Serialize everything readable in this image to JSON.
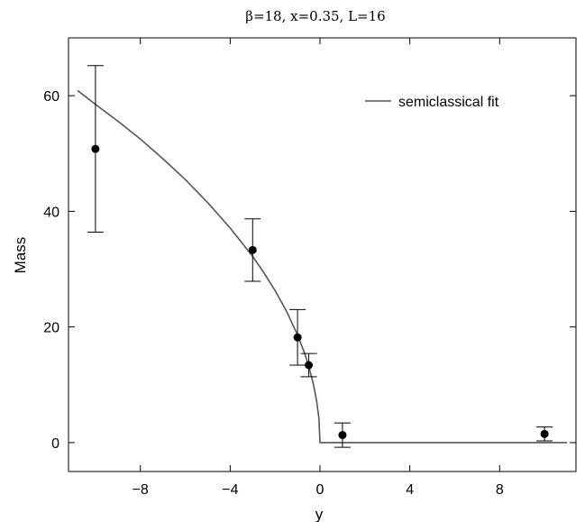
{
  "chart_data": {
    "type": "scatter",
    "title": "β=18, x=0.35, L=16",
    "xlabel": "y",
    "ylabel": "Mass",
    "xlim": [
      -11.2,
      11.4
    ],
    "ylim": [
      -5,
      70
    ],
    "xticks": [
      -8,
      -4,
      0,
      4,
      8
    ],
    "yticks": [
      0,
      20,
      40,
      60
    ],
    "grid": false,
    "legend": {
      "position": "top-right",
      "entries": [
        "semiclassical fit"
      ]
    },
    "series": [
      {
        "kind": "points-with-error-bars",
        "points": [
          {
            "x": -10,
            "y": 50.8,
            "err_low": 14.4,
            "err_high": 14.4
          },
          {
            "x": -3,
            "y": 33.3,
            "err_low": 5.4,
            "err_high": 5.4
          },
          {
            "x": -1,
            "y": 18.2,
            "err_low": 4.8,
            "err_high": 4.8
          },
          {
            "x": -0.5,
            "y": 13.4,
            "err_low": 2.0,
            "err_high": 2.0
          },
          {
            "x": 1,
            "y": 1.3,
            "err_low": 2.1,
            "err_high": 2.1
          },
          {
            "x": 10,
            "y": 1.5,
            "err_low": 1.2,
            "err_high": 1.2
          }
        ]
      },
      {
        "name": "semiclassical fit",
        "kind": "line",
        "x": [
          -10.8,
          -10,
          -9,
          -8,
          -7,
          -6,
          -5,
          -4,
          -3,
          -2.5,
          -2,
          -1.5,
          -1,
          -0.7,
          -0.5,
          -0.3,
          -0.15,
          -0.05,
          0,
          1,
          4,
          8,
          11
        ],
        "y": [
          60.9,
          58.5,
          55.6,
          52.5,
          49.1,
          45.5,
          41.5,
          37.1,
          32.2,
          29.4,
          26.3,
          22.8,
          18.6,
          15.6,
          13.2,
          10.2,
          7.2,
          4.2,
          0,
          0,
          0,
          0,
          0
        ]
      }
    ]
  }
}
